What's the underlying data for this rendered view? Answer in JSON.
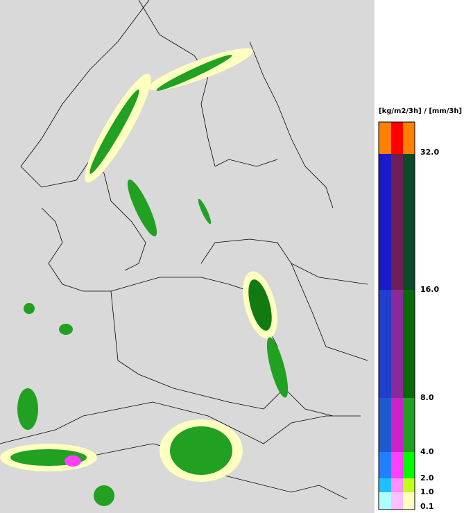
{
  "legend": {
    "unit": "[kg/m2/3h] / [mm/3h]",
    "levels": [
      "32.0",
      "16.0",
      "8.0",
      "4.0",
      "2.0",
      "1.0",
      "0.1"
    ]
  }
}
